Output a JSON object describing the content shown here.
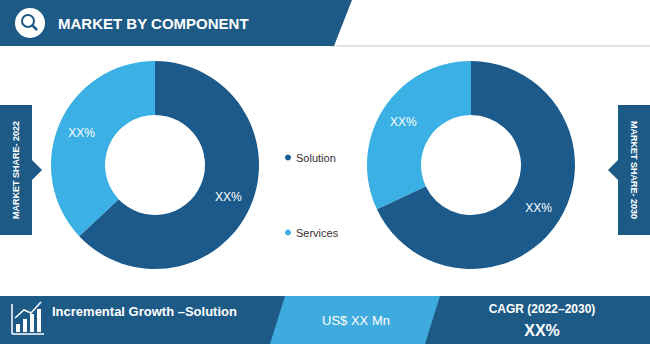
{
  "header": {
    "title": "MARKET BY COMPONENT"
  },
  "chart_data": [
    {
      "type": "pie",
      "title": "MARKET SHARE- 2022",
      "categories": [
        "Solution",
        "Services"
      ],
      "values": [
        63,
        37
      ],
      "value_labels": [
        "XX%",
        "XX%"
      ],
      "colors": [
        "#1b5a8a",
        "#3bb0e4"
      ],
      "data_labels": true,
      "legend": "right"
    },
    {
      "type": "pie",
      "title": "MARKET SHARE- 2030",
      "categories": [
        "Solution",
        "Services"
      ],
      "values": [
        68,
        32
      ],
      "value_labels": [
        "XX%",
        "XX%"
      ],
      "colors": [
        "#1b5a8a",
        "#3bb0e4"
      ],
      "data_labels": true
    }
  ],
  "footer": {
    "growth_label": "Incremental Growth –Solution",
    "growth_value": "US$ XX Mn",
    "cagr_label": "CAGR (2022–2030)",
    "cagr_value": "XX%"
  }
}
